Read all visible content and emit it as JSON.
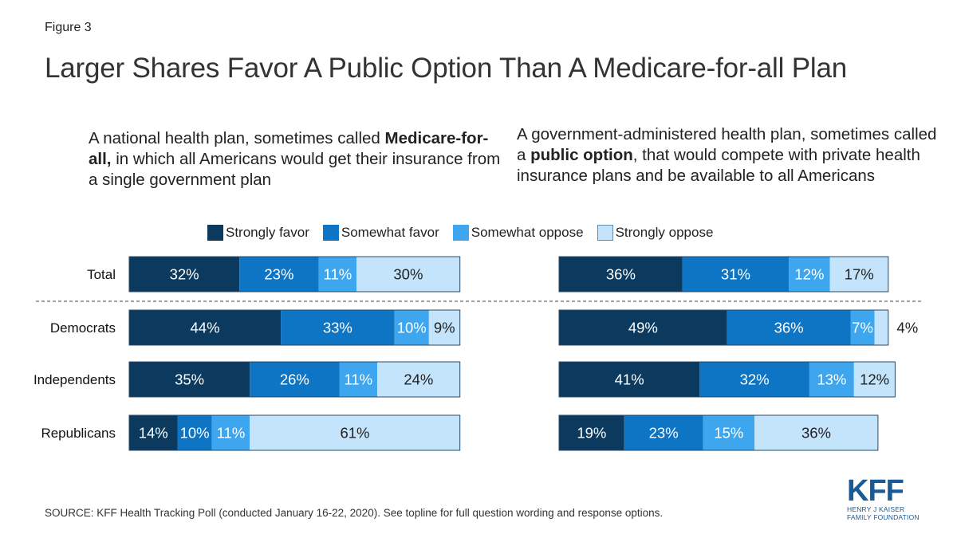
{
  "figure_label": "Figure 3",
  "title": "Larger Shares Favor A Public Option Than A Medicare-for-all Plan",
  "left_description": {
    "part1": "A national health plan, sometimes called ",
    "bold": "Medicare-for-all,",
    "part2": " in which all Americans would get their insurance from a single government plan"
  },
  "right_description": {
    "part1": "A government-administered health plan, sometimes called a ",
    "bold": "public option",
    "part2": ", that would compete with private health insurance plans and be available to all Americans"
  },
  "legend": [
    {
      "label": "Strongly favor",
      "color": "#0b3a5e"
    },
    {
      "label": "Somewhat favor",
      "color": "#0e74c4"
    },
    {
      "label": "Somewhat oppose",
      "color": "#3ea6ee"
    },
    {
      "label": "Strongly oppose",
      "color": "#c4e4fb"
    }
  ],
  "source": "SOURCE: KFF Health Tracking Poll (conducted January 16-22, 2020). See topline for full question wording and response options.",
  "logo": {
    "name": "KFF",
    "line1": "HENRY J KAISER",
    "line2": "FAMILY FOUNDATION"
  },
  "chart_data": [
    {
      "type": "bar",
      "orientation": "horizontal",
      "stacked": true,
      "categories": [
        "Total",
        "Democrats",
        "Independents",
        "Republicans"
      ],
      "series": [
        {
          "name": "Strongly favor",
          "values": [
            32,
            44,
            35,
            14
          ],
          "color": "#0b3a5e"
        },
        {
          "name": "Somewhat favor",
          "values": [
            23,
            33,
            26,
            10
          ],
          "color": "#0e74c4"
        },
        {
          "name": "Somewhat oppose",
          "values": [
            11,
            10,
            11,
            11
          ],
          "color": "#3ea6ee"
        },
        {
          "name": "Strongly oppose",
          "values": [
            30,
            9,
            24,
            61
          ],
          "color": "#c4e4fb"
        }
      ],
      "labels": [
        [
          "32%",
          "23%",
          "11%",
          "30%"
        ],
        [
          "44%",
          "33%",
          "10%",
          "9%"
        ],
        [
          "35%",
          "26%",
          "11%",
          "24%"
        ],
        [
          "14%",
          "10%",
          "11%",
          "61%"
        ]
      ]
    },
    {
      "type": "bar",
      "orientation": "horizontal",
      "stacked": true,
      "categories": [
        "Total",
        "Democrats",
        "Independents",
        "Republicans"
      ],
      "series": [
        {
          "name": "Strongly favor",
          "values": [
            36,
            49,
            41,
            19
          ],
          "color": "#0b3a5e"
        },
        {
          "name": "Somewhat favor",
          "values": [
            31,
            36,
            32,
            23
          ],
          "color": "#0e74c4"
        },
        {
          "name": "Somewhat oppose",
          "values": [
            12,
            7,
            13,
            15
          ],
          "color": "#3ea6ee"
        },
        {
          "name": "Strongly oppose",
          "values": [
            17,
            4,
            12,
            36
          ],
          "color": "#c4e4fb"
        }
      ],
      "labels": [
        [
          "36%",
          "31%",
          "12%",
          "17%"
        ],
        [
          "49%",
          "36%",
          "7%",
          "4%"
        ],
        [
          "41%",
          "32%",
          "13%",
          "12%"
        ],
        [
          "19%",
          "23%",
          "15%",
          "36%"
        ]
      ]
    }
  ]
}
